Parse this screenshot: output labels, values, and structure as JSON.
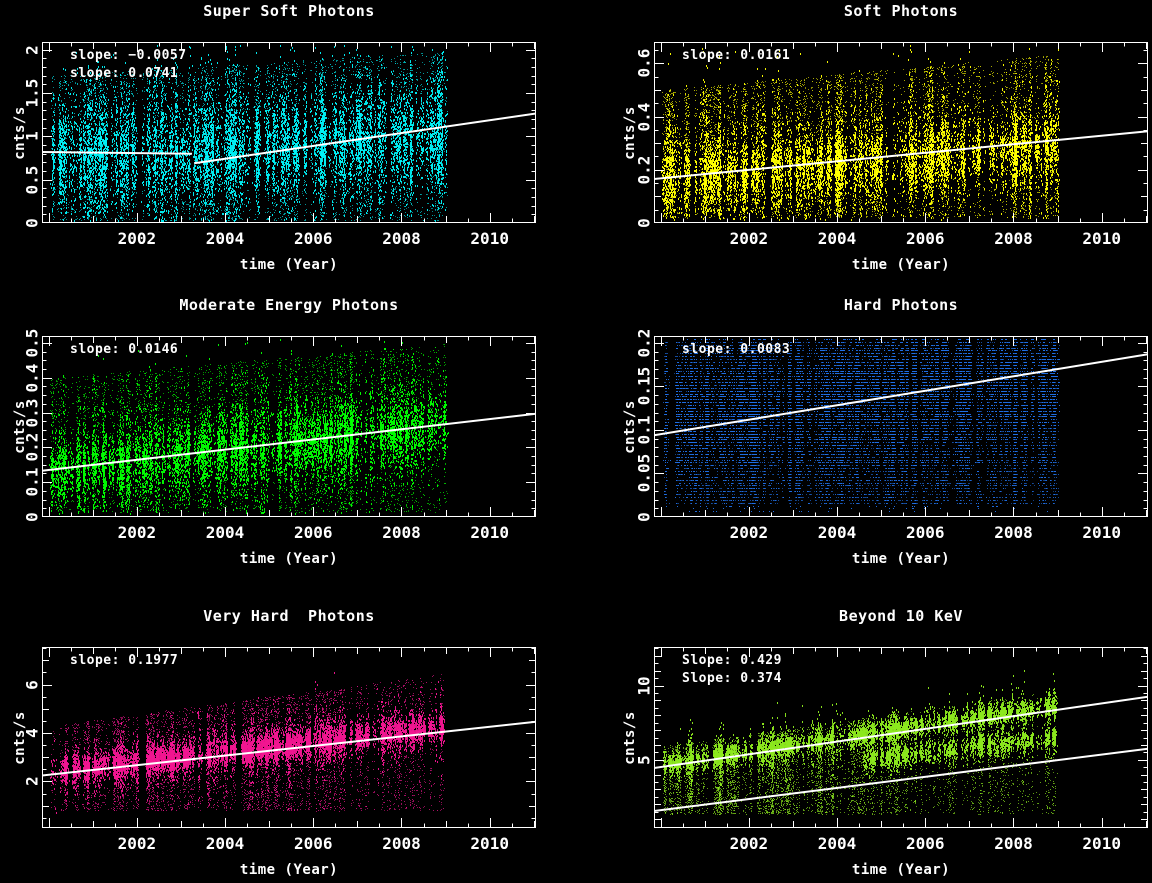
{
  "figure": {
    "background": "#000000",
    "axis_color": "#ffffff",
    "fit_line_color": "#ffffff",
    "xlabel": "time (Year)",
    "ylabel": "cnts/s",
    "x_range": [
      1999.85,
      2011.05
    ],
    "x_tick_values": [
      2002,
      2004,
      2006,
      2008,
      2010
    ],
    "x_tick_labels": [
      "2002",
      "2004",
      "2006",
      "2008",
      "2010"
    ],
    "x_minor_step": 0.5,
    "data_x_span": [
      2000.05,
      2009.0
    ],
    "grid": "off",
    "layout": "2 columns x 3 rows"
  },
  "chart_data": [
    {
      "type": "scatter",
      "title": "Super Soft Photons",
      "xlabel": "time (Year)",
      "ylabel": "cnts/s",
      "color": "#00f0f5",
      "x_range": [
        1999.85,
        2011.05
      ],
      "y_range": [
        0,
        2.09
      ],
      "x_tick_labels": [
        "2002",
        "2004",
        "2006",
        "2008",
        "2010"
      ],
      "x_tick_values": [
        2002,
        2004,
        2006,
        2008,
        2010
      ],
      "y_tick_values": [
        0,
        0.5,
        1,
        1.5,
        2
      ],
      "y_tick_labels": [
        "0",
        "0.5",
        "1",
        "1.5",
        "2"
      ],
      "y_mid_ticks": [],
      "y_minor_step": 0.1,
      "data_span": [
        2000.05,
        2009.0
      ],
      "annotations": [
        {
          "text": "slope: −0.0057",
          "value": -0.0057
        },
        {
          "text": "slope: 0.0741",
          "value": 0.0741
        }
      ],
      "fit_lines": [
        {
          "slope": -0.0057,
          "x1": 1999.85,
          "y1": 0.82,
          "x2": 2003.25,
          "y2": 0.8006
        },
        {
          "slope": 0.0741,
          "x1": 2003.3,
          "y1": 0.69,
          "x2": 2011.05,
          "y2": 1.264
        }
      ],
      "scatter_model": {
        "seed": 101,
        "streaks": 270,
        "points": 55,
        "center_start": 0.74,
        "center_slope": 0.03,
        "sigma": 0.3,
        "core_frac": 0.58,
        "tail_low": 0.03,
        "tail_high_start": 1.7,
        "tail_high_slope": 0.032,
        "clip": [
          0.02,
          2.06
        ],
        "quantize": 0,
        "point_h": 2,
        "burst_prob": 0.17
      }
    },
    {
      "type": "scatter",
      "title": "Soft Photons",
      "xlabel": "time (Year)",
      "ylabel": "cnts/s",
      "color": "#ffff00",
      "x_range": [
        1999.85,
        2011.05
      ],
      "y_range": [
        0,
        0.68
      ],
      "x_tick_labels": [
        "2002",
        "2004",
        "2006",
        "2008",
        "2010"
      ],
      "x_tick_values": [
        2002,
        2004,
        2006,
        2008,
        2010
      ],
      "y_tick_values": [
        0,
        0.2,
        0.4,
        0.6
      ],
      "y_tick_labels": [
        "0",
        "0.2",
        "0.4",
        "0.6"
      ],
      "y_mid_ticks": [
        0.1,
        0.3,
        0.5
      ],
      "y_minor_step": 0.05,
      "data_span": [
        2000.05,
        2009.0
      ],
      "annotations": [
        {
          "text": "slope: 0.0161",
          "value": 0.0161
        }
      ],
      "fit_lines": [
        {
          "slope": 0.0161,
          "x1": 1999.85,
          "y1": 0.165,
          "x2": 2011.05,
          "y2": 0.345
        }
      ],
      "scatter_model": {
        "seed": 202,
        "streaks": 270,
        "points": 55,
        "center_start": 0.17,
        "center_slope": 0.013,
        "sigma": 0.075,
        "core_frac": 0.52,
        "tail_low": 0.02,
        "tail_high_start": 0.5,
        "tail_high_slope": 0.015,
        "clip": [
          0.015,
          0.672
        ],
        "quantize": 0,
        "point_h": 2,
        "burst_prob": 0.17
      }
    },
    {
      "type": "scatter",
      "title": "Moderate Energy Photons",
      "xlabel": "time (Year)",
      "ylabel": "cnts/s",
      "color": "#00ff00",
      "x_range": [
        1999.85,
        2011.05
      ],
      "y_range": [
        0,
        0.52
      ],
      "x_tick_labels": [
        "2002",
        "2004",
        "2006",
        "2008",
        "2010"
      ],
      "x_tick_values": [
        2002,
        2004,
        2006,
        2008,
        2010
      ],
      "y_tick_values": [
        0,
        0.1,
        0.2,
        0.3,
        0.4,
        0.5
      ],
      "y_tick_labels": [
        "0",
        "0.1",
        "0.2",
        "0.3",
        "0.4",
        "0.5"
      ],
      "y_mid_ticks": [],
      "y_minor_step": 0.025,
      "data_span": [
        2000.05,
        2009.0
      ],
      "annotations": [
        {
          "text": "slope: 0.0146",
          "value": 0.0146
        }
      ],
      "fit_lines": [
        {
          "slope": 0.0146,
          "x1": 1999.85,
          "y1": 0.133,
          "x2": 2011.05,
          "y2": 0.2965
        }
      ],
      "scatter_model": {
        "seed": 303,
        "streaks": 270,
        "points": 55,
        "center_start": 0.135,
        "center_slope": 0.0148,
        "sigma": 0.052,
        "core_frac": 0.56,
        "tail_low": 0.015,
        "tail_high_start": 0.4,
        "tail_high_slope": 0.011,
        "clip": [
          0.012,
          0.515
        ],
        "quantize": 0,
        "point_h": 2,
        "burst_prob": 0.17
      }
    },
    {
      "type": "scatter",
      "title": "Hard Photons",
      "xlabel": "time (Year)",
      "ylabel": "cnts/s",
      "color": "#2070e8",
      "x_range": [
        1999.85,
        2011.05
      ],
      "y_range": [
        0,
        0.208
      ],
      "x_tick_labels": [
        "2002",
        "2004",
        "2006",
        "2008",
        "2010"
      ],
      "x_tick_values": [
        2002,
        2004,
        2006,
        2008,
        2010
      ],
      "y_tick_values": [
        0,
        0.05,
        0.1,
        0.15,
        0.2
      ],
      "y_tick_labels": [
        "0",
        "0.05",
        "0.1",
        "0.15",
        "0.2"
      ],
      "y_mid_ticks": [],
      "y_minor_step": 0.01,
      "data_span": [
        2000.05,
        2009.0
      ],
      "annotations": [
        {
          "text": "slope: 0.0083",
          "value": 0.0083
        }
      ],
      "fit_lines": [
        {
          "slope": 0.0083,
          "x1": 1999.85,
          "y1": 0.094,
          "x2": 2011.05,
          "y2": 0.187
        }
      ],
      "scatter_model": {
        "seed": 404,
        "streaks": 310,
        "points": 70,
        "center_start": 0.112,
        "center_slope": 0.0062,
        "sigma": 0.042,
        "core_frac": 0.5,
        "tail_low": 0.015,
        "tail_high_start": 0.202,
        "tail_high_slope": 0,
        "clip": [
          0.004,
          0.2065
        ],
        "quantize": 0.0033,
        "point_h": 1,
        "burst_prob": 0.2
      }
    },
    {
      "type": "scatter",
      "title": "Very Hard  Photons",
      "xlabel": "time (Year)",
      "ylabel": "cnts/s",
      "color": "#f01590",
      "x_range": [
        1999.85,
        2011.05
      ],
      "y_range": [
        0.08,
        7.55
      ],
      "x_tick_labels": [
        "2002",
        "2004",
        "2006",
        "2008",
        "2010"
      ],
      "x_tick_values": [
        2002,
        2004,
        2006,
        2008,
        2010
      ],
      "y_tick_values": [
        2,
        4,
        6
      ],
      "y_tick_labels": [
        "2",
        "4",
        "6"
      ],
      "y_mid_ticks": [
        1,
        3,
        5,
        7
      ],
      "y_minor_step": 0.5,
      "data_span": [
        2000.05,
        2009.0
      ],
      "annotations": [
        {
          "text": "slope: 0.1977",
          "value": 0.1977
        }
      ],
      "fit_lines": [
        {
          "slope": 0.1977,
          "x1": 1999.85,
          "y1": 2.25,
          "x2": 2011.05,
          "y2": 4.464
        }
      ],
      "scatter_model": {
        "seed": 505,
        "streaks": 270,
        "points": 55,
        "center_start": 2.42,
        "center_slope": 0.205,
        "sigma": 0.3,
        "core_frac": 0.6,
        "tail_low": 0.8,
        "tail_high_start": 4.3,
        "tail_high_slope": 0.24,
        "clip": [
          0.6,
          7.4
        ],
        "quantize": 0,
        "point_h": 2,
        "burst_prob": 0.17
      }
    },
    {
      "type": "scatter",
      "title": "Beyond 10 KeV",
      "xlabel": "time (Year)",
      "ylabel": "cnts/s",
      "color": "#8ce81e",
      "x_range": [
        1999.85,
        2011.05
      ],
      "y_range": [
        0.4,
        12.6
      ],
      "x_tick_labels": [
        "2002",
        "2004",
        "2006",
        "2008",
        "2010"
      ],
      "x_tick_values": [
        2002,
        2004,
        2006,
        2008,
        2010
      ],
      "y_tick_values": [
        5,
        10
      ],
      "y_tick_labels": [
        "5",
        "10"
      ],
      "y_mid_ticks": [
        1,
        2,
        3,
        4,
        6,
        7,
        8,
        9,
        11,
        12
      ],
      "y_minor_step": 0.5,
      "data_span": [
        2000.05,
        2009.0
      ],
      "annotations": [
        {
          "text": "Slope: 0.429",
          "value": 0.429
        },
        {
          "text": "Slope: 0.374",
          "value": 0.374
        }
      ],
      "fit_lines": [
        {
          "slope": 0.429,
          "x1": 1999.85,
          "y1": 4.45,
          "x2": 2011.05,
          "y2": 9.255
        },
        {
          "slope": 0.374,
          "x1": 1999.85,
          "y1": 1.55,
          "x2": 2011.05,
          "y2": 5.739
        }
      ],
      "scatter_model": {
        "seed": 606,
        "streaks": 250,
        "points": 55,
        "center_start": 4.7,
        "center_slope": 0.445,
        "sigma": 0.34,
        "core_frac": 0.42,
        "center2_start": 3.45,
        "center2_slope": 0.345,
        "sigma2": 0.36,
        "core2_frac": 0.28,
        "center2_min_x": 2004.6,
        "tail_low": 1.35,
        "tail_high_start": 5.9,
        "tail_high_slope": 0.42,
        "clip": [
          0.5,
          12.45
        ],
        "quantize": 0,
        "point_h": 2,
        "burst_prob": 0.17
      }
    }
  ]
}
